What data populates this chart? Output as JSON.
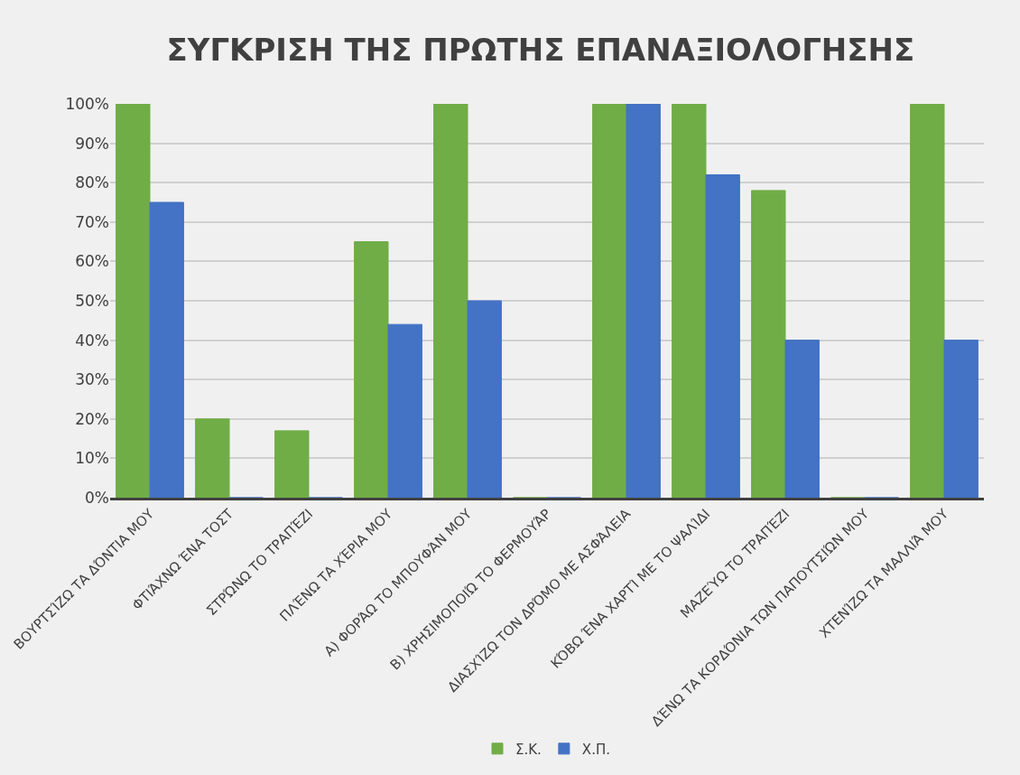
{
  "chart_data": {
    "type": "bar",
    "title": "ΣΥΓΚΡΙΣΗ ΤΗΣ ΠΡΩΤΗΣ ΕΠΑΝΑΞΙΟΛΟΓΗΣΗΣ",
    "categories": [
      "ΒΟΥΡΤΣΊΖΩ ΤΑ ΔΌΝΤΙΑ ΜΟΥ",
      "ΦΤΙΆΧΝΩ ΈΝΑ ΤΟΣΤ",
      "ΣΤΡΏΝΩ ΤΟ ΤΡΑΠΈΖΙ",
      "ΠΛΈΝΩ ΤΑ ΧΈΡΙΑ ΜΟΥ",
      "Α) ΦΟΡΆΩ ΤΟ ΜΠΟΥΦΆΝ ΜΟΥ",
      "Β) ΧΡΗΣΙΜΟΠΟΙΏ ΤΟ ΦΕΡΜΟΥΆΡ",
      "ΔΙΑΣΧΊΖΩ ΤΟΝ ΔΡΌΜΟ ΜΕ ΑΣΦΆΛΕΙΑ",
      "ΚΌΒΩ ΈΝΑ ΧΑΡΤΊ ΜΕ ΤΟ ΨΑΛΊΔΙ",
      "ΜΑΖΕΎΩ ΤΟ ΤΡΑΠΈΖΙ",
      "ΔΈΝΩ ΤΑ ΚΟΡΔΌΝΙΑ ΤΩΝ ΠΑΠΟΥΤΣΙΏΝ ΜΟΥ",
      "ΧΤΕΝΊΖΩ ΤΑ ΜΑΛΛΙΆ ΜΟΥ"
    ],
    "series": [
      {
        "name": "Σ.Κ.",
        "color": "#70ad47",
        "values": [
          100,
          20,
          17,
          65,
          100,
          0,
          100,
          100,
          78,
          0,
          100
        ]
      },
      {
        "name": "Χ.Π.",
        "color": "#4472c4",
        "values": [
          75,
          0,
          0,
          44,
          50,
          0,
          100,
          82,
          40,
          0,
          40
        ]
      }
    ],
    "ylim": [
      0,
      100
    ],
    "yticks": [
      {
        "value": 0,
        "label": "0%"
      },
      {
        "value": 10,
        "label": "10%"
      },
      {
        "value": 20,
        "label": "20%"
      },
      {
        "value": 30,
        "label": "30%"
      },
      {
        "value": 40,
        "label": "40%"
      },
      {
        "value": 50,
        "label": "50%"
      },
      {
        "value": 60,
        "label": "60%"
      },
      {
        "value": 70,
        "label": "70%"
      },
      {
        "value": 80,
        "label": "80%"
      },
      {
        "value": 90,
        "label": "90%"
      },
      {
        "value": 100,
        "label": "100%"
      }
    ],
    "grid": "y",
    "legend": "bottom"
  }
}
